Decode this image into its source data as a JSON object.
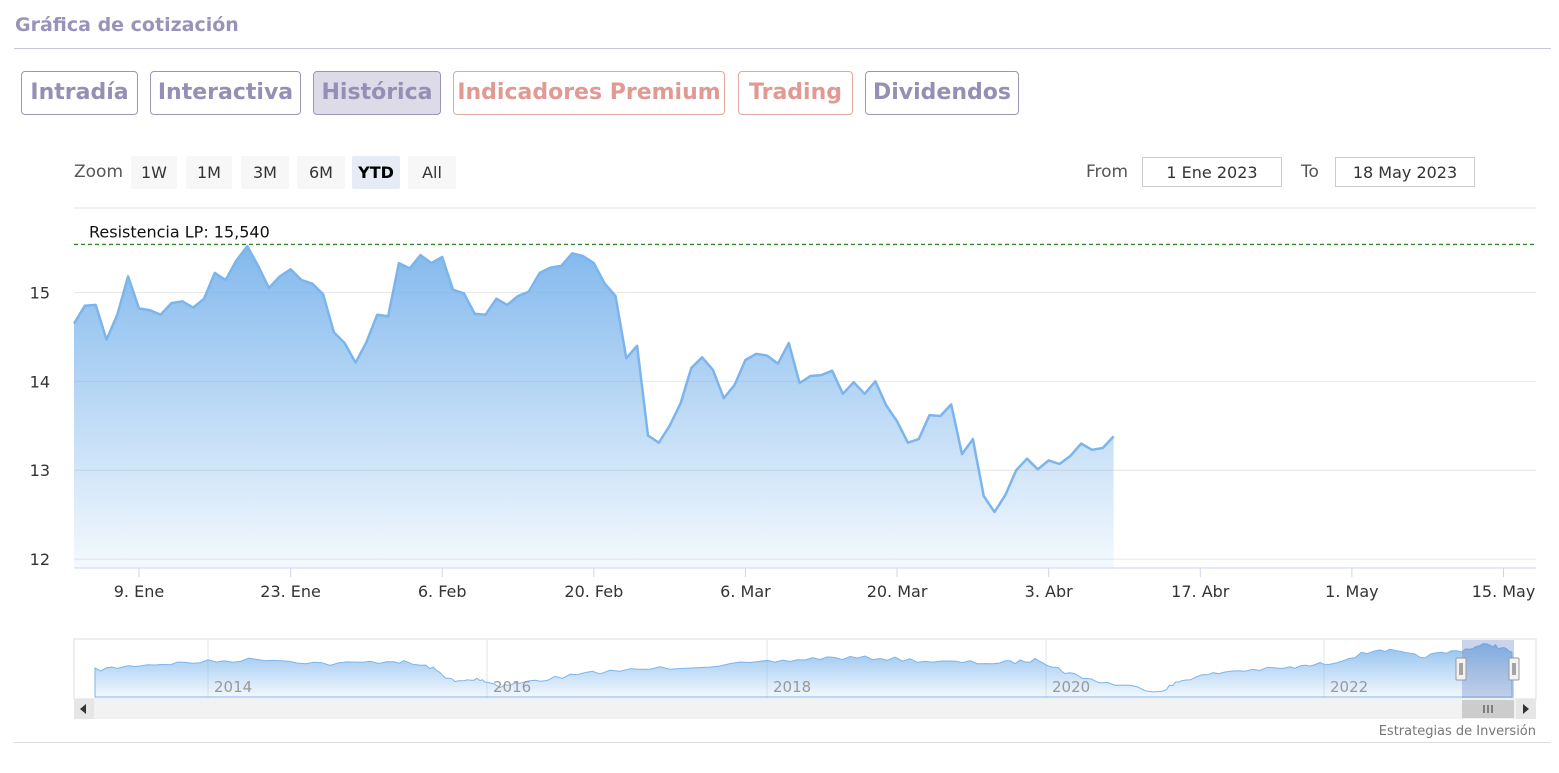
{
  "header": {
    "title": "Gráfica de cotización"
  },
  "tabs": [
    {
      "label": "Intradía",
      "state": "normal"
    },
    {
      "label": "Interactiva",
      "state": "normal"
    },
    {
      "label": "Histórica",
      "state": "active"
    },
    {
      "label": "Indicadores Premium",
      "state": "premium"
    },
    {
      "label": "Trading",
      "state": "premium"
    },
    {
      "label": "Dividendos",
      "state": "normal"
    }
  ],
  "zoom": {
    "label": "Zoom",
    "buttons": [
      "1W",
      "1M",
      "3M",
      "6M",
      "YTD",
      "All"
    ],
    "selected": "YTD"
  },
  "range": {
    "from_label": "From",
    "from_value": "1 Ene 2023",
    "to_label": "To",
    "to_value": "18 May 2023"
  },
  "credit": "Estrategias de Inversión",
  "colors": {
    "series": "#7cb5ec",
    "resistance": "#2e8b2e",
    "accent": "#948fb4",
    "premium": "#e19a93"
  },
  "chart_data": {
    "type": "area",
    "y_ticks": [
      12,
      13,
      14,
      15
    ],
    "ylim": [
      11.9,
      15.95
    ],
    "x_ticks": [
      {
        "label": "9. Ene",
        "date": "2023-01-09"
      },
      {
        "label": "23. Ene",
        "date": "2023-01-23"
      },
      {
        "label": "6. Feb",
        "date": "2023-02-06"
      },
      {
        "label": "20. Feb",
        "date": "2023-02-20"
      },
      {
        "label": "6. Mar",
        "date": "2023-03-06"
      },
      {
        "label": "20. Mar",
        "date": "2023-03-20"
      },
      {
        "label": "3. Abr",
        "date": "2023-04-03"
      },
      {
        "label": "17. Abr",
        "date": "2023-04-17"
      },
      {
        "label": "1. May",
        "date": "2023-05-01"
      },
      {
        "label": "15. May",
        "date": "2023-05-15"
      }
    ],
    "xlim": [
      "2023-01-03",
      "2023-05-18"
    ],
    "resistance": {
      "label": "Resistencia LP: 15,540",
      "value": 15.54
    },
    "series": [
      {
        "values": [
          [
            "2023-01-03",
            14.65
          ],
          [
            "2023-01-04",
            14.85
          ],
          [
            "2023-01-05",
            14.86
          ],
          [
            "2023-01-06",
            14.47
          ],
          [
            "2023-01-07",
            14.75
          ],
          [
            "2023-01-08",
            15.18
          ],
          [
            "2023-01-09",
            14.82
          ],
          [
            "2023-01-10",
            14.8
          ],
          [
            "2023-01-11",
            14.75
          ],
          [
            "2023-01-12",
            14.88
          ],
          [
            "2023-01-13",
            14.9
          ],
          [
            "2023-01-14",
            14.83
          ],
          [
            "2023-01-15",
            14.93
          ],
          [
            "2023-01-16",
            15.22
          ],
          [
            "2023-01-17",
            15.14
          ],
          [
            "2023-01-18",
            15.36
          ],
          [
            "2023-01-19",
            15.52
          ],
          [
            "2023-01-20",
            15.3
          ],
          [
            "2023-01-21",
            15.05
          ],
          [
            "2023-01-22",
            15.18
          ],
          [
            "2023-01-23",
            15.26
          ],
          [
            "2023-01-24",
            15.14
          ],
          [
            "2023-01-25",
            15.1
          ],
          [
            "2023-01-26",
            14.98
          ],
          [
            "2023-01-27",
            14.55
          ],
          [
            "2023-01-28",
            14.43
          ],
          [
            "2023-01-29",
            14.21
          ],
          [
            "2023-01-30",
            14.44
          ],
          [
            "2023-01-31",
            14.75
          ],
          [
            "2023-02-01",
            14.73
          ],
          [
            "2023-02-02",
            15.33
          ],
          [
            "2023-02-03",
            15.27
          ],
          [
            "2023-02-04",
            15.42
          ],
          [
            "2023-02-05",
            15.33
          ],
          [
            "2023-02-06",
            15.4
          ],
          [
            "2023-02-07",
            15.03
          ],
          [
            "2023-02-08",
            14.99
          ],
          [
            "2023-02-09",
            14.76
          ],
          [
            "2023-02-10",
            14.75
          ],
          [
            "2023-02-11",
            14.93
          ],
          [
            "2023-02-12",
            14.86
          ],
          [
            "2023-02-13",
            14.96
          ],
          [
            "2023-02-14",
            15.01
          ],
          [
            "2023-02-15",
            15.22
          ],
          [
            "2023-02-16",
            15.28
          ],
          [
            "2023-02-17",
            15.3
          ],
          [
            "2023-02-18",
            15.44
          ],
          [
            "2023-02-19",
            15.41
          ],
          [
            "2023-02-20",
            15.33
          ],
          [
            "2023-02-21",
            15.1
          ],
          [
            "2023-02-22",
            14.96
          ],
          [
            "2023-02-23",
            14.26
          ],
          [
            "2023-02-24",
            14.4
          ],
          [
            "2023-02-25",
            13.39
          ],
          [
            "2023-02-26",
            13.31
          ],
          [
            "2023-02-27",
            13.5
          ],
          [
            "2023-02-28",
            13.75
          ],
          [
            "2023-03-01",
            14.15
          ],
          [
            "2023-03-02",
            14.27
          ],
          [
            "2023-03-03",
            14.13
          ],
          [
            "2023-03-04",
            13.81
          ],
          [
            "2023-03-05",
            13.96
          ],
          [
            "2023-03-06",
            14.24
          ],
          [
            "2023-03-07",
            14.31
          ],
          [
            "2023-03-08",
            14.29
          ],
          [
            "2023-03-09",
            14.2
          ],
          [
            "2023-03-10",
            14.43
          ],
          [
            "2023-03-11",
            13.98
          ],
          [
            "2023-03-12",
            14.06
          ],
          [
            "2023-03-13",
            14.07
          ],
          [
            "2023-03-14",
            14.12
          ],
          [
            "2023-03-15",
            13.86
          ],
          [
            "2023-03-16",
            13.99
          ],
          [
            "2023-03-17",
            13.86
          ],
          [
            "2023-03-18",
            14.0
          ],
          [
            "2023-03-19",
            13.73
          ],
          [
            "2023-03-20",
            13.55
          ],
          [
            "2023-03-21",
            13.31
          ],
          [
            "2023-03-22",
            13.35
          ],
          [
            "2023-03-23",
            13.62
          ],
          [
            "2023-03-24",
            13.61
          ],
          [
            "2023-03-25",
            13.74
          ],
          [
            "2023-03-26",
            13.18
          ],
          [
            "2023-03-27",
            13.35
          ],
          [
            "2023-03-28",
            12.71
          ],
          [
            "2023-03-29",
            12.53
          ],
          [
            "2023-03-30",
            12.72
          ],
          [
            "2023-03-31",
            13.0
          ],
          [
            "2023-04-01",
            13.13
          ],
          [
            "2023-04-02",
            13.01
          ],
          [
            "2023-04-03",
            13.11
          ],
          [
            "2023-04-04",
            13.07
          ],
          [
            "2023-04-05",
            13.16
          ],
          [
            "2023-04-06",
            13.3
          ],
          [
            "2023-04-07",
            13.23
          ],
          [
            "2023-04-08",
            13.25
          ],
          [
            "2023-04-09",
            13.38
          ]
        ]
      }
    ],
    "navigator": {
      "year_labels": [
        "2014",
        "2016",
        "2018",
        "2020",
        "2022"
      ]
    }
  }
}
